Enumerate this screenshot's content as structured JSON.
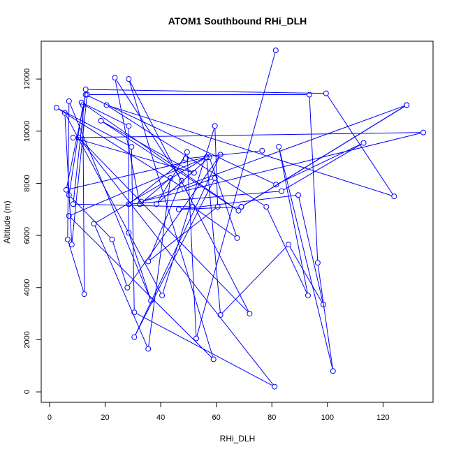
{
  "chart_data": {
    "type": "line",
    "title": "ATOM1 Southbound RHi_DLH",
    "xlabel": "RHi_DLH",
    "ylabel": "Altitude (m)",
    "xlim": [
      -3,
      138
    ],
    "ylim": [
      -400,
      13450
    ],
    "x_ticks": [
      0,
      20,
      40,
      60,
      80,
      100,
      120
    ],
    "y_ticks": [
      0,
      2000,
      4000,
      6000,
      8000,
      10000,
      12000
    ],
    "line_color": "#0000ff",
    "marker": "open-circle",
    "series": [
      {
        "points": [
          {
            "x": 81.4,
            "y": 13100
          },
          {
            "x": 52.8,
            "y": 2050
          },
          {
            "x": 49.5,
            "y": 9200
          },
          {
            "x": 38.5,
            "y": 7200
          },
          {
            "x": 57.5,
            "y": 9000
          },
          {
            "x": 67.5,
            "y": 5900
          },
          {
            "x": 51.5,
            "y": 7100
          },
          {
            "x": 8.5,
            "y": 7200
          },
          {
            "x": 13,
            "y": 11600
          },
          {
            "x": 99.5,
            "y": 11450
          },
          {
            "x": 124,
            "y": 7500
          },
          {
            "x": 20.5,
            "y": 11000
          },
          {
            "x": 78,
            "y": 7100
          },
          {
            "x": 93,
            "y": 3700
          },
          {
            "x": 82.5,
            "y": 9400
          },
          {
            "x": 102,
            "y": 800
          },
          {
            "x": 96.5,
            "y": 4950
          },
          {
            "x": 93.5,
            "y": 11400
          },
          {
            "x": 13.5,
            "y": 11400
          },
          {
            "x": 8,
            "y": 5650
          },
          {
            "x": 5.5,
            "y": 10700
          },
          {
            "x": 40.5,
            "y": 3700
          },
          {
            "x": 59.5,
            "y": 10200
          },
          {
            "x": 60.5,
            "y": 7100
          },
          {
            "x": 35.5,
            "y": 5000
          },
          {
            "x": 47.5,
            "y": 8100
          },
          {
            "x": 23.5,
            "y": 12050
          },
          {
            "x": 32.5,
            "y": 7200
          },
          {
            "x": 43.5,
            "y": 8200
          },
          {
            "x": 35.5,
            "y": 1650
          },
          {
            "x": 16,
            "y": 6450
          },
          {
            "x": 56.5,
            "y": 9000
          },
          {
            "x": 61.5,
            "y": 2950
          },
          {
            "x": 86,
            "y": 5650
          },
          {
            "x": 98.5,
            "y": 3350
          },
          {
            "x": 89.5,
            "y": 7550
          },
          {
            "x": 46.5,
            "y": 7000
          },
          {
            "x": 69,
            "y": 7100
          },
          {
            "x": 128.5,
            "y": 11000
          },
          {
            "x": 69,
            "y": 7100
          },
          {
            "x": 128.5,
            "y": 11000
          },
          {
            "x": 33,
            "y": 7300
          },
          {
            "x": 134.5,
            "y": 9950
          },
          {
            "x": 8.5,
            "y": 9750
          },
          {
            "x": 52,
            "y": 8400
          },
          {
            "x": 18.5,
            "y": 10400
          },
          {
            "x": 68,
            "y": 6950
          },
          {
            "x": 11.5,
            "y": 11100
          },
          {
            "x": 28.5,
            "y": 10200
          },
          {
            "x": 28.5,
            "y": 6100
          },
          {
            "x": 36.5,
            "y": 3500
          },
          {
            "x": 7,
            "y": 11150
          },
          {
            "x": 6.5,
            "y": 5850
          },
          {
            "x": 12.5,
            "y": 3750
          },
          {
            "x": 12,
            "y": 11000
          },
          {
            "x": 7,
            "y": 7550
          },
          {
            "x": 22.5,
            "y": 5850
          },
          {
            "x": 28,
            "y": 4000
          },
          {
            "x": 61.5,
            "y": 9100
          },
          {
            "x": 30.5,
            "y": 2100
          },
          {
            "x": 59.5,
            "y": 8200
          },
          {
            "x": 48.5,
            "y": 7800
          },
          {
            "x": 2.5,
            "y": 10900
          },
          {
            "x": 29.5,
            "y": 9400
          },
          {
            "x": 30.5,
            "y": 3050
          },
          {
            "x": 81,
            "y": 200
          },
          {
            "x": 10.5,
            "y": 9750
          },
          {
            "x": 72,
            "y": 3000
          },
          {
            "x": 28.5,
            "y": 12000
          },
          {
            "x": 59,
            "y": 1250
          },
          {
            "x": 7,
            "y": 6750
          },
          {
            "x": 56.5,
            "y": 9000
          },
          {
            "x": 6,
            "y": 7750
          },
          {
            "x": 13,
            "y": 11400
          },
          {
            "x": 81.5,
            "y": 7950
          },
          {
            "x": 113,
            "y": 9550
          },
          {
            "x": 83.5,
            "y": 7700
          },
          {
            "x": 28.5,
            "y": 7200
          },
          {
            "x": 49,
            "y": 8950
          },
          {
            "x": 76.5,
            "y": 9250
          }
        ]
      }
    ]
  }
}
